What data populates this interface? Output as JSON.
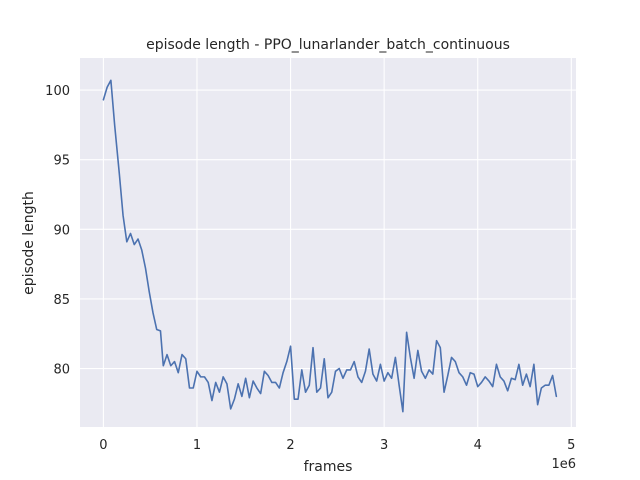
{
  "chart_data": {
    "type": "line",
    "title": "episode length - PPO_lunarlander_batch_continuous",
    "xlabel": "frames",
    "ylabel": "episode length",
    "x_offset_label": "1e6",
    "xlim": [
      -0.25,
      5.05
    ],
    "ylim": [
      75.8,
      102.3
    ],
    "x_ticks": [
      0,
      1,
      2,
      3,
      4,
      5
    ],
    "x_tick_labels": [
      "0",
      "1",
      "2",
      "3",
      "4",
      "5"
    ],
    "y_ticks": [
      80,
      85,
      90,
      95,
      100
    ],
    "y_tick_labels": [
      "80",
      "85",
      "90",
      "95",
      "100"
    ],
    "grid": true,
    "background": "#eaeaf2",
    "series": [
      {
        "color": "#4c72b0",
        "x": [
          0.0,
          0.04,
          0.08,
          0.12,
          0.17,
          0.21,
          0.25,
          0.29,
          0.33,
          0.37,
          0.41,
          0.45,
          0.49,
          0.53,
          0.57,
          0.61,
          0.64,
          0.68,
          0.72,
          0.76,
          0.8,
          0.84,
          0.88,
          0.92,
          0.96,
          1.0,
          1.04,
          1.08,
          1.12,
          1.16,
          1.2,
          1.24,
          1.28,
          1.32,
          1.36,
          1.4,
          1.44,
          1.48,
          1.52,
          1.56,
          1.6,
          1.64,
          1.68,
          1.72,
          1.76,
          1.8,
          1.84,
          1.88,
          1.92,
          1.96,
          2.0,
          2.04,
          2.08,
          2.12,
          2.16,
          2.2,
          2.24,
          2.28,
          2.32,
          2.36,
          2.4,
          2.44,
          2.48,
          2.52,
          2.56,
          2.6,
          2.64,
          2.68,
          2.72,
          2.76,
          2.8,
          2.84,
          2.88,
          2.92,
          2.96,
          3.0,
          3.04,
          3.08,
          3.12,
          3.16,
          3.2,
          3.24,
          3.28,
          3.32,
          3.36,
          3.4,
          3.44,
          3.48,
          3.52,
          3.56,
          3.6,
          3.64,
          3.68,
          3.72,
          3.76,
          3.8,
          3.84,
          3.88,
          3.92,
          3.96,
          4.0,
          4.04,
          4.08,
          4.12,
          4.16,
          4.2,
          4.24,
          4.28,
          4.32,
          4.36,
          4.4,
          4.44,
          4.48,
          4.52,
          4.56,
          4.6,
          4.64,
          4.68,
          4.72,
          4.76,
          4.8,
          4.84
        ],
        "y": [
          99.3,
          100.2,
          100.7,
          97.5,
          94.0,
          91.0,
          89.1,
          89.7,
          88.9,
          89.3,
          88.5,
          87.2,
          85.5,
          84.0,
          82.8,
          82.7,
          80.2,
          81.0,
          80.2,
          80.5,
          79.7,
          81.0,
          80.7,
          78.6,
          78.6,
          79.8,
          79.4,
          79.4,
          79.0,
          77.7,
          79.0,
          78.3,
          79.4,
          78.9,
          77.1,
          77.8,
          78.9,
          78.0,
          79.3,
          77.9,
          79.1,
          78.6,
          78.2,
          79.8,
          79.5,
          79.0,
          79.0,
          78.6,
          79.7,
          80.5,
          81.6,
          77.8,
          77.8,
          79.9,
          78.3,
          78.8,
          81.5,
          78.3,
          78.6,
          80.7,
          77.9,
          78.3,
          79.8,
          80.0,
          79.3,
          79.9,
          79.9,
          80.5,
          79.4,
          79.0,
          79.8,
          81.4,
          79.6,
          79.1,
          80.3,
          79.1,
          79.7,
          79.3,
          80.8,
          78.8,
          76.9,
          82.6,
          80.8,
          79.3,
          81.3,
          79.8,
          79.3,
          79.9,
          79.6,
          82.0,
          81.5,
          78.3,
          79.5,
          80.8,
          80.5,
          79.7,
          79.4,
          78.8,
          79.7,
          79.6,
          78.7,
          79.0,
          79.4,
          79.1,
          78.7,
          80.3,
          79.4,
          79.1,
          78.4,
          79.3,
          79.2,
          80.3,
          78.8,
          79.6,
          78.7,
          80.3,
          77.4,
          78.6,
          78.8,
          78.8,
          79.5,
          78.0
        ]
      }
    ]
  }
}
